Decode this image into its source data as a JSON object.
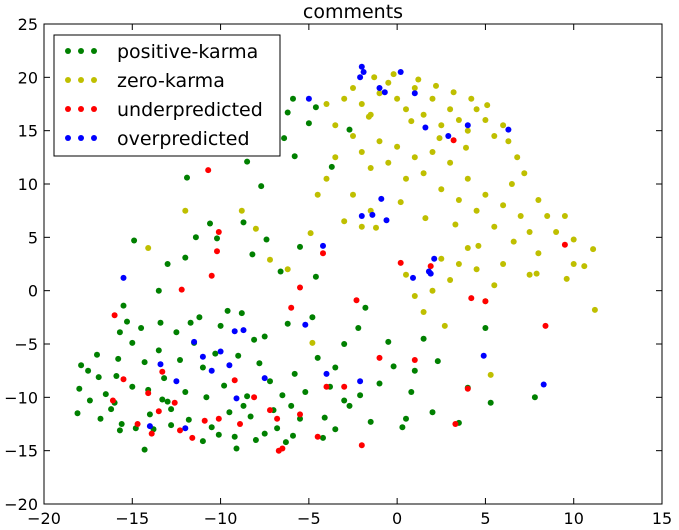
{
  "chart_data": {
    "type": "scatter",
    "title": "comments",
    "xlabel": "",
    "ylabel": "",
    "xlim": [
      -20,
      15
    ],
    "ylim": [
      -20,
      25
    ],
    "xticks": [
      -20,
      -15,
      -10,
      -5,
      0,
      5,
      10,
      15
    ],
    "yticks": [
      -20,
      -15,
      -10,
      -5,
      0,
      5,
      10,
      15,
      20,
      25
    ],
    "grid": false,
    "legend_position": "top-left",
    "series": [
      {
        "name": "positive-karma",
        "color": "#008000",
        "points": [
          [
            -18.1,
            -11.5
          ],
          [
            -18.0,
            -9.2
          ],
          [
            -17.9,
            -7.0
          ],
          [
            -17.5,
            -7.5
          ],
          [
            -17.0,
            -6.0
          ],
          [
            -16.9,
            -8.1
          ],
          [
            -16.5,
            -9.7
          ],
          [
            -16.2,
            -11.1
          ],
          [
            -16.0,
            -10.5
          ],
          [
            -15.9,
            -8.0
          ],
          [
            -15.8,
            -6.4
          ],
          [
            -15.7,
            -3.9
          ],
          [
            -15.6,
            -12.5
          ],
          [
            -15.5,
            -1.4
          ],
          [
            -15.3,
            -2.9
          ],
          [
            -15.0,
            -4.9
          ],
          [
            -15.0,
            -9.0
          ],
          [
            -14.8,
            -12.9
          ],
          [
            -14.5,
            -3.5
          ],
          [
            -14.3,
            -6.7
          ],
          [
            -14.1,
            -9.3
          ],
          [
            -14.0,
            -11.6
          ],
          [
            -13.8,
            -13.0
          ],
          [
            -13.5,
            -5.6
          ],
          [
            -13.4,
            -3.0
          ],
          [
            -13.2,
            -8.2
          ],
          [
            -13.0,
            -10.4
          ],
          [
            -12.8,
            -12.6
          ],
          [
            -12.5,
            -3.9
          ],
          [
            -12.3,
            -6.5
          ],
          [
            -12.0,
            -9.5
          ],
          [
            -11.8,
            -12.1
          ],
          [
            -11.5,
            -4.9
          ],
          [
            -11.2,
            -2.5
          ],
          [
            -11.0,
            -7.2
          ],
          [
            -10.8,
            -10.0
          ],
          [
            -10.5,
            -12.8
          ],
          [
            -10.3,
            -5.9
          ],
          [
            -10.0,
            -3.3
          ],
          [
            -9.8,
            -8.9
          ],
          [
            -9.5,
            -11.4
          ],
          [
            -9.2,
            -13.7
          ],
          [
            -9.0,
            -6.1
          ],
          [
            -8.8,
            -2.1
          ],
          [
            -8.5,
            -9.9
          ],
          [
            -8.3,
            -11.8
          ],
          [
            -8.0,
            -14.0
          ],
          [
            -7.8,
            -6.8
          ],
          [
            -7.5,
            -4.3
          ],
          [
            -7.2,
            -8.5
          ],
          [
            -7.0,
            -11.2
          ],
          [
            -6.8,
            -12.9
          ],
          [
            -6.5,
            -9.8
          ],
          [
            -6.3,
            -14.2
          ],
          [
            -6.0,
            -10.8
          ],
          [
            -5.8,
            -7.8
          ],
          [
            -5.5,
            -12.0
          ],
          [
            -5.2,
            -9.5
          ],
          [
            -4.8,
            -2.5
          ],
          [
            -4.5,
            -6.3
          ],
          [
            -4.1,
            -11.9
          ],
          [
            -3.8,
            -9.0
          ],
          [
            -3.5,
            -13.0
          ],
          [
            -3.0,
            -5.0
          ],
          [
            -2.7,
            -10.8
          ],
          [
            -2.2,
            -3.5
          ],
          [
            -1.8,
            -1.6
          ],
          [
            -1.5,
            -12.3
          ],
          [
            -1.0,
            -8.7
          ],
          [
            -0.5,
            -4.8
          ],
          [
            -0.2,
            -7.1
          ],
          [
            0.3,
            -12.8
          ],
          [
            0.8,
            -9.5
          ],
          [
            1.5,
            -4.5
          ],
          [
            2.0,
            -11.4
          ],
          [
            3.5,
            -12.4
          ],
          [
            5.0,
            -3.5
          ],
          [
            5.3,
            -10.5
          ],
          [
            7.8,
            -10.0
          ],
          [
            -14.9,
            4.7
          ],
          [
            -13.5,
            0.0
          ],
          [
            -13.0,
            2.5
          ],
          [
            -12.0,
            3.1
          ],
          [
            -11.4,
            5.0
          ],
          [
            -10.6,
            6.3
          ],
          [
            -10.2,
            4.9
          ],
          [
            -8.7,
            6.4
          ],
          [
            -8.2,
            3.4
          ],
          [
            -7.4,
            4.8
          ],
          [
            -6.6,
            1.8
          ],
          [
            -5.5,
            4.1
          ],
          [
            -4.6,
            1.3
          ],
          [
            -11.9,
            10.6
          ],
          [
            -7.7,
            9.8
          ],
          [
            -6.8,
            13.5
          ],
          [
            -6.4,
            14.3
          ],
          [
            -5.8,
            12.6
          ],
          [
            -5.0,
            15.7
          ],
          [
            -4.6,
            17.2
          ],
          [
            -5.9,
            18.0
          ],
          [
            -6.2,
            16.7
          ],
          [
            -2.7,
            15.1
          ],
          [
            -3.7,
            11.6
          ],
          [
            -8.5,
            12.1
          ],
          [
            -12.8,
            -11.1
          ],
          [
            -16.8,
            -12.0
          ],
          [
            -14.3,
            -14.9
          ],
          [
            -10.1,
            -13.5
          ],
          [
            -9.1,
            -14.8
          ],
          [
            -7.5,
            -13.4
          ],
          [
            -4.2,
            -13.8
          ],
          [
            -2.1,
            -9.8
          ],
          [
            1.0,
            -7.5
          ],
          [
            -17.4,
            -10.3
          ],
          [
            -15.7,
            -13.1
          ],
          [
            -13.3,
            -10.2
          ],
          [
            -11.0,
            -14.1
          ],
          [
            -8.7,
            -10.8
          ],
          [
            -5.9,
            -13.6
          ],
          [
            -3.0,
            -10.3
          ],
          [
            -11.7,
            -3.0
          ],
          [
            -9.6,
            -1.9
          ],
          [
            -8.1,
            -4.6
          ],
          [
            -6.2,
            -3.1
          ],
          [
            -3.5,
            -7.2
          ],
          [
            0.5,
            -12.0
          ],
          [
            4.0,
            -9.1
          ],
          [
            2.3,
            -6.6
          ]
        ]
      },
      {
        "name": "zero-karma",
        "color": "#BFBF00",
        "points": [
          [
            -3.0,
            18.0
          ],
          [
            -2.5,
            19.0
          ],
          [
            -2.0,
            17.5
          ],
          [
            -1.5,
            16.5
          ],
          [
            -1.0,
            18.5
          ],
          [
            -0.5,
            19.5
          ],
          [
            0.0,
            18.0
          ],
          [
            0.5,
            17.0
          ],
          [
            1.0,
            19.0
          ],
          [
            1.5,
            16.5
          ],
          [
            2.0,
            18.0
          ],
          [
            2.5,
            15.5
          ],
          [
            3.0,
            17.0
          ],
          [
            3.5,
            16.0
          ],
          [
            4.0,
            15.0
          ],
          [
            4.5,
            17.0
          ],
          [
            5.0,
            16.0
          ],
          [
            5.5,
            14.5
          ],
          [
            6.0,
            15.5
          ],
          [
            -2.5,
            14.5
          ],
          [
            -2.0,
            13.0
          ],
          [
            -1.5,
            11.5
          ],
          [
            -1.0,
            14.0
          ],
          [
            -0.5,
            12.0
          ],
          [
            0.0,
            13.5
          ],
          [
            0.5,
            10.5
          ],
          [
            1.0,
            12.5
          ],
          [
            1.5,
            11.0
          ],
          [
            2.0,
            13.0
          ],
          [
            2.5,
            9.5
          ],
          [
            3.0,
            12.0
          ],
          [
            3.5,
            8.5
          ],
          [
            4.0,
            10.5
          ],
          [
            4.5,
            7.5
          ],
          [
            5.0,
            9.0
          ],
          [
            5.5,
            6.0
          ],
          [
            6.0,
            8.0
          ],
          [
            6.5,
            10.0
          ],
          [
            7.0,
            7.0
          ],
          [
            7.5,
            5.5
          ],
          [
            8.0,
            8.5
          ],
          [
            8.5,
            7.0
          ],
          [
            9.0,
            5.5
          ],
          [
            9.5,
            7.0
          ],
          [
            10.0,
            2.5
          ],
          [
            11.1,
            3.9
          ],
          [
            11.2,
            -1.8
          ],
          [
            10.0,
            4.8
          ],
          [
            8.0,
            3.5
          ],
          [
            7.5,
            1.5
          ],
          [
            6.0,
            2.5
          ],
          [
            5.5,
            0.5
          ],
          [
            5.0,
            -1.0
          ],
          [
            4.5,
            2.0
          ],
          [
            4.0,
            4.0
          ],
          [
            3.5,
            2.5
          ],
          [
            3.0,
            1.0
          ],
          [
            2.5,
            3.0
          ],
          [
            2.0,
            0.0
          ],
          [
            1.5,
            -2.0
          ],
          [
            1.0,
            -0.5
          ],
          [
            0.5,
            1.5
          ],
          [
            -2.5,
            9.0
          ],
          [
            -2.0,
            6.0
          ],
          [
            -1.5,
            7.5
          ],
          [
            -3.0,
            6.5
          ],
          [
            -3.5,
            12.5
          ],
          [
            -4.0,
            10.5
          ],
          [
            -4.5,
            9.0
          ],
          [
            -3.5,
            15.5
          ],
          [
            -4.0,
            17.5
          ],
          [
            -1.3,
            20.0
          ],
          [
            -0.2,
            20.3
          ],
          [
            1.2,
            19.8
          ],
          [
            2.2,
            19.2
          ],
          [
            3.2,
            18.6
          ],
          [
            4.2,
            18.0
          ],
          [
            5.1,
            17.4
          ],
          [
            6.3,
            14.0
          ],
          [
            6.8,
            12.5
          ],
          [
            7.2,
            11.0
          ],
          [
            2.7,
            -3.3
          ],
          [
            5.3,
            -7.9
          ],
          [
            -4.8,
            -4.9
          ],
          [
            -8.8,
            7.5
          ],
          [
            -8.0,
            5.8
          ],
          [
            -12.0,
            7.5
          ],
          [
            -14.1,
            4.0
          ],
          [
            -7.2,
            2.9
          ],
          [
            -6.2,
            2.0
          ],
          [
            -4.9,
            5.4
          ],
          [
            -1.2,
            5.9
          ],
          [
            0.2,
            8.3
          ],
          [
            1.6,
            6.8
          ],
          [
            3.3,
            6.2
          ],
          [
            4.6,
            4.2
          ],
          [
            6.6,
            4.6
          ],
          [
            7.9,
            1.6
          ],
          [
            9.6,
            1.1
          ],
          [
            10.6,
            2.3
          ],
          [
            -1.6,
            16.3
          ],
          [
            0.8,
            15.9
          ],
          [
            2.4,
            14.3
          ],
          [
            3.9,
            13.4
          ]
        ]
      },
      {
        "name": "underpredicted",
        "color": "#FF0000",
        "points": [
          [
            -16.1,
            -10.3
          ],
          [
            -15.5,
            -8.3
          ],
          [
            -14.7,
            -12.5
          ],
          [
            -13.9,
            -13.4
          ],
          [
            -13.5,
            -11.3
          ],
          [
            -13.3,
            -7.6
          ],
          [
            -12.6,
            -10.5
          ],
          [
            -12.3,
            -13.1
          ],
          [
            -11.6,
            -13.8
          ],
          [
            -10.9,
            -12.2
          ],
          [
            -10.1,
            -12.0
          ],
          [
            -9.2,
            -8.4
          ],
          [
            -8.9,
            -12.5
          ],
          [
            -8.1,
            -10.0
          ],
          [
            -7.2,
            -11.2
          ],
          [
            -6.8,
            -12.0
          ],
          [
            -6.5,
            -14.8
          ],
          [
            -6.7,
            -15.0
          ],
          [
            -5.5,
            -11.6
          ],
          [
            -4.5,
            -13.7
          ],
          [
            -4.0,
            -9.0
          ],
          [
            -3.0,
            -9.0
          ],
          [
            -2.0,
            -14.5
          ],
          [
            -1.0,
            -6.3
          ],
          [
            1.0,
            -6.5
          ],
          [
            3.3,
            -12.5
          ],
          [
            4.0,
            -9.2
          ],
          [
            -16.0,
            -2.3
          ],
          [
            -12.2,
            0.1
          ],
          [
            -10.5,
            1.4
          ],
          [
            -10.2,
            3.7
          ],
          [
            -10.1,
            5.5
          ],
          [
            -6.0,
            -1.6
          ],
          [
            4.2,
            -0.7
          ],
          [
            0.2,
            2.6
          ],
          [
            1.9,
            2.3
          ],
          [
            5.0,
            -1.0
          ],
          [
            8.4,
            -3.3
          ],
          [
            9.5,
            4.3
          ],
          [
            3.2,
            14.1
          ],
          [
            -10.7,
            11.3
          ],
          [
            -5.5,
            0.3
          ],
          [
            -4.2,
            3.5
          ],
          [
            -14.1,
            -9.6
          ],
          [
            -2.3,
            -0.9
          ]
        ]
      },
      {
        "name": "overpredicted",
        "color": "#0000FF",
        "points": [
          [
            -2.1,
            20.0
          ],
          [
            -1.9,
            20.5
          ],
          [
            -2.0,
            21.0
          ],
          [
            -1.0,
            19.0
          ],
          [
            -0.7,
            18.6
          ],
          [
            0.2,
            20.5
          ],
          [
            1.0,
            18.5
          ],
          [
            -5.0,
            18.0
          ],
          [
            2.9,
            14.5
          ],
          [
            6.3,
            15.1
          ],
          [
            4.0,
            15.5
          ],
          [
            -2.0,
            7.0
          ],
          [
            -1.4,
            7.1
          ],
          [
            -0.9,
            8.6
          ],
          [
            -4.2,
            4.2
          ],
          [
            2.1,
            3.0
          ],
          [
            1.9,
            1.6
          ],
          [
            1.8,
            1.8
          ],
          [
            -11.5,
            -4.8
          ],
          [
            -10.5,
            -7.5
          ],
          [
            -11.0,
            -6.2
          ],
          [
            -12.5,
            -8.5
          ],
          [
            -15.5,
            1.2
          ],
          [
            -13.4,
            -6.9
          ],
          [
            -5.2,
            -3.2
          ],
          [
            -4.0,
            -7.8
          ],
          [
            4.9,
            -6.1
          ],
          [
            8.3,
            -8.8
          ],
          [
            -9.5,
            -7.0
          ],
          [
            -7.5,
            -8.2
          ],
          [
            -12.0,
            -12.9
          ],
          [
            -2.1,
            -8.5
          ],
          [
            -14.0,
            -12.7
          ],
          [
            -8.7,
            -3.7
          ],
          [
            -9.2,
            -3.8
          ],
          [
            -10.0,
            -5.7
          ],
          [
            -0.6,
            6.6
          ],
          [
            0.9,
            1.2
          ],
          [
            1.6,
            15.3
          ],
          [
            -9.1,
            -10.1
          ]
        ]
      }
    ]
  }
}
